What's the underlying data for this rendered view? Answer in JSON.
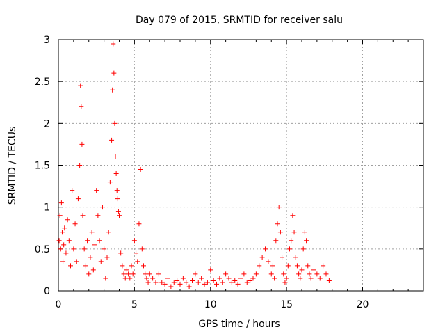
{
  "chart_data": {
    "type": "scatter",
    "title": "Day 079 of 2015, SRMTID for receiver salu",
    "xlabel": "GPS time / hours",
    "ylabel": "SRMTID / TECUs",
    "xlim": [
      0,
      24
    ],
    "ylim": [
      0,
      3
    ],
    "xticks": [
      0,
      5,
      10,
      15,
      20
    ],
    "xtick_labels": [
      "0",
      "5",
      "10",
      "15",
      "20"
    ],
    "yticks": [
      0,
      0.5,
      1,
      1.5,
      2,
      2.5,
      3
    ],
    "ytick_labels": [
      "0",
      "0.5",
      "1",
      "1.5",
      "2",
      "2.5",
      "3"
    ],
    "grid": true,
    "marker": "+",
    "color": "#ff0000",
    "series": [
      {
        "name": "SRMTID",
        "x": [
          0.05,
          0.1,
          0.15,
          0.2,
          0.25,
          0.3,
          0.35,
          0.4,
          0.5,
          0.6,
          0.7,
          0.8,
          0.9,
          1.0,
          1.1,
          1.2,
          1.3,
          1.4,
          1.45,
          1.5,
          1.55,
          1.6,
          1.7,
          1.8,
          1.9,
          2.0,
          2.1,
          2.2,
          2.3,
          2.4,
          2.5,
          2.6,
          2.7,
          2.8,
          2.9,
          3.0,
          3.1,
          3.2,
          3.3,
          3.4,
          3.5,
          3.55,
          3.6,
          3.65,
          3.7,
          3.75,
          3.8,
          3.85,
          3.9,
          3.95,
          4.0,
          4.1,
          4.2,
          4.3,
          4.4,
          4.5,
          4.6,
          4.7,
          4.8,
          4.9,
          5.0,
          5.1,
          5.2,
          5.3,
          5.4,
          5.5,
          5.6,
          5.7,
          5.8,
          5.9,
          6.0,
          6.2,
          6.4,
          6.6,
          6.8,
          7.0,
          7.2,
          7.4,
          7.6,
          7.8,
          8.0,
          8.2,
          8.4,
          8.6,
          8.8,
          9.0,
          9.2,
          9.4,
          9.6,
          9.8,
          10.0,
          10.2,
          10.4,
          10.6,
          10.8,
          11.0,
          11.2,
          11.4,
          11.6,
          11.8,
          12.0,
          12.2,
          12.4,
          12.6,
          12.8,
          13.0,
          13.2,
          13.4,
          13.6,
          13.8,
          14.0,
          14.1,
          14.2,
          14.3,
          14.4,
          14.5,
          14.6,
          14.7,
          14.8,
          14.9,
          15.0,
          15.1,
          15.2,
          15.3,
          15.4,
          15.5,
          15.6,
          15.7,
          15.8,
          15.9,
          16.0,
          16.1,
          16.2,
          16.3,
          16.4,
          16.5,
          16.6,
          16.8,
          17.0,
          17.2,
          17.4,
          17.6,
          17.8
        ],
        "y": [
          0.6,
          0.9,
          0.5,
          1.05,
          0.7,
          0.35,
          0.55,
          0.75,
          0.45,
          0.85,
          0.6,
          0.3,
          1.2,
          0.5,
          0.8,
          0.35,
          1.1,
          1.5,
          2.45,
          2.2,
          1.75,
          0.9,
          0.5,
          0.3,
          0.6,
          0.2,
          0.4,
          0.7,
          0.25,
          0.55,
          1.2,
          0.9,
          0.6,
          0.35,
          1.0,
          0.5,
          0.15,
          0.4,
          0.7,
          1.3,
          1.8,
          2.4,
          2.95,
          2.6,
          2.0,
          1.6,
          1.4,
          1.2,
          1.1,
          0.95,
          0.9,
          0.45,
          0.3,
          0.2,
          0.15,
          0.25,
          0.2,
          0.15,
          0.3,
          0.2,
          0.6,
          0.45,
          0.35,
          0.8,
          1.45,
          0.5,
          0.3,
          0.2,
          0.15,
          0.1,
          0.2,
          0.15,
          0.1,
          0.2,
          0.1,
          0.08,
          0.15,
          0.05,
          0.1,
          0.12,
          0.08,
          0.15,
          0.1,
          0.05,
          0.12,
          0.2,
          0.1,
          0.15,
          0.08,
          0.1,
          0.25,
          0.12,
          0.08,
          0.15,
          0.1,
          0.2,
          0.15,
          0.1,
          0.12,
          0.08,
          0.15,
          0.2,
          0.1,
          0.12,
          0.15,
          0.2,
          0.3,
          0.4,
          0.5,
          0.35,
          0.2,
          0.3,
          0.15,
          0.6,
          0.8,
          1.0,
          0.7,
          0.4,
          0.2,
          0.1,
          0.15,
          0.3,
          0.5,
          0.6,
          0.9,
          0.7,
          0.4,
          0.3,
          0.2,
          0.15,
          0.25,
          0.5,
          0.7,
          0.6,
          0.3,
          0.2,
          0.15,
          0.25,
          0.2,
          0.15,
          0.3,
          0.2,
          0.12
        ]
      }
    ]
  }
}
